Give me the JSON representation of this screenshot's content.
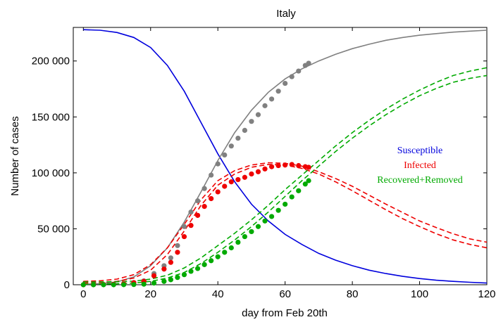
{
  "chart_data": {
    "type": "line",
    "title": "Italy",
    "xlabel": "day from Feb 20th",
    "ylabel": "Number of cases",
    "xlim": [
      -3,
      120
    ],
    "ylim": [
      0,
      230000
    ],
    "x_ticks": [
      0,
      20,
      40,
      60,
      80,
      100,
      120
    ],
    "x_tick_labels": [
      "0",
      "20",
      "40",
      "60",
      "80",
      "100",
      "120"
    ],
    "y_ticks": [
      0,
      50000,
      100000,
      150000,
      200000
    ],
    "y_tick_labels": [
      "0",
      "50 000",
      "100 000",
      "150 000",
      "200 000"
    ],
    "colors": {
      "susceptible": "#0000dd",
      "infected": "#ee0000",
      "recovered": "#00aa00",
      "total": "#808080"
    },
    "legend": {
      "placement": "right",
      "entries": [
        {
          "label": "Susceptible",
          "color": "#0000dd"
        },
        {
          "label": "Infected",
          "color": "#ee0000"
        },
        {
          "label": "Recovered+Removed",
          "color": "#00aa00"
        }
      ]
    },
    "series": [
      {
        "key": "susceptible",
        "style": "solid",
        "color": "#0000dd",
        "x": [
          0,
          5,
          10,
          15,
          20,
          25,
          30,
          35,
          40,
          45,
          50,
          55,
          60,
          65,
          70,
          75,
          80,
          85,
          90,
          95,
          100,
          105,
          110,
          115,
          120
        ],
        "y": [
          228000,
          227500,
          225500,
          221000,
          212000,
          196000,
          173000,
          145000,
          117000,
          92000,
          72000,
          57000,
          45000,
          36000,
          28000,
          22000,
          17000,
          13000,
          10000,
          7500,
          5500,
          4000,
          3000,
          2200,
          1500
        ]
      },
      {
        "key": "total_fit",
        "style": "solid",
        "color": "#808080",
        "x": [
          0,
          5,
          10,
          15,
          20,
          25,
          30,
          35,
          40,
          45,
          50,
          55,
          60,
          65,
          70,
          75,
          80,
          85,
          90,
          95,
          100,
          105,
          110,
          115,
          120
        ],
        "y": [
          500,
          1000,
          2500,
          7000,
          17000,
          33000,
          56000,
          83000,
          111000,
          136000,
          156000,
          172000,
          184000,
          193000,
          200000,
          206000,
          211000,
          215000,
          218500,
          221000,
          223000,
          224500,
          225800,
          226700,
          227500
        ]
      },
      {
        "key": "infected_fit_upper",
        "style": "dashed",
        "color": "#ee0000",
        "x": [
          0,
          5,
          10,
          15,
          20,
          25,
          30,
          35,
          40,
          45,
          50,
          55,
          60,
          65,
          70,
          75,
          80,
          85,
          90,
          95,
          100,
          105,
          110,
          115,
          120
        ],
        "y": [
          3000,
          3500,
          5000,
          9000,
          18000,
          33000,
          54000,
          76000,
          93000,
          102000,
          107000,
          109000,
          108500,
          106000,
          101000,
          95000,
          88000,
          80000,
          72000,
          64500,
          57000,
          51000,
          45500,
          41000,
          38000
        ]
      },
      {
        "key": "infected_fit_lower",
        "style": "dashed",
        "color": "#ee0000",
        "x": [
          0,
          5,
          10,
          15,
          20,
          25,
          30,
          35,
          40,
          45,
          50,
          55,
          60,
          65,
          70,
          75,
          80,
          85,
          90,
          95,
          100,
          105,
          110,
          115,
          120
        ],
        "y": [
          1500,
          2000,
          3000,
          6000,
          13000,
          27000,
          48000,
          71000,
          89000,
          99000,
          105000,
          107500,
          107000,
          104000,
          99000,
          92000,
          84000,
          75500,
          67000,
          59000,
          52000,
          45500,
          40000,
          36000,
          33000
        ]
      },
      {
        "key": "recovered_fit_upper",
        "style": "dashed",
        "color": "#00aa00",
        "x": [
          0,
          5,
          10,
          15,
          20,
          25,
          30,
          35,
          40,
          45,
          50,
          55,
          60,
          65,
          70,
          75,
          80,
          85,
          90,
          95,
          100,
          105,
          110,
          115,
          120
        ],
        "y": [
          2500,
          2500,
          2700,
          3200,
          5000,
          8500,
          15000,
          24000,
          35000,
          46000,
          58000,
          71000,
          85000,
          98000,
          111000,
          124000,
          136000,
          147000,
          157000,
          166000,
          174000,
          181000,
          187000,
          191000,
          194000
        ]
      },
      {
        "key": "recovered_fit_lower",
        "style": "dashed",
        "color": "#00aa00",
        "x": [
          0,
          5,
          10,
          15,
          20,
          25,
          30,
          35,
          40,
          45,
          50,
          55,
          60,
          65,
          70,
          75,
          80,
          85,
          90,
          95,
          100,
          105,
          110,
          115,
          120
        ],
        "y": [
          500,
          600,
          900,
          1500,
          3000,
          6000,
          11000,
          19000,
          29000,
          40000,
          52000,
          65000,
          79000,
          93000,
          106000,
          119000,
          131000,
          142000,
          152000,
          161000,
          169000,
          175500,
          181000,
          184500,
          187000
        ]
      }
    ],
    "data_points": [
      {
        "key": "total_data",
        "color": "#808080",
        "x": [
          0,
          3,
          6,
          9,
          12,
          15,
          18,
          21,
          24,
          26,
          28,
          30,
          32,
          34,
          36,
          38,
          40,
          42,
          44,
          46,
          48,
          50,
          52,
          54,
          56,
          58,
          60,
          62,
          64,
          66,
          67
        ],
        "y": [
          0,
          100,
          200,
          400,
          900,
          2000,
          3500,
          10000,
          17000,
          24000,
          35000,
          52000,
          65000,
          75000,
          86000,
          98000,
          108000,
          116000,
          124000,
          131000,
          138000,
          146000,
          152000,
          160000,
          166000,
          173000,
          180000,
          186000,
          191000,
          196000,
          198000
        ]
      },
      {
        "key": "infected_data",
        "color": "#ee0000",
        "x": [
          0,
          3,
          6,
          9,
          12,
          15,
          18,
          21,
          24,
          26,
          28,
          30,
          32,
          34,
          36,
          38,
          40,
          42,
          44,
          46,
          48,
          50,
          52,
          54,
          56,
          58,
          60,
          62,
          64,
          66,
          67
        ],
        "y": [
          0,
          100,
          200,
          400,
          800,
          1800,
          3000,
          8000,
          14000,
          20000,
          29000,
          43000,
          53000,
          62000,
          70000,
          77000,
          83000,
          88000,
          92000,
          94000,
          96000,
          99000,
          101000,
          103500,
          105500,
          106500,
          107000,
          107500,
          106500,
          105500,
          105000
        ]
      },
      {
        "key": "recovered_data",
        "color": "#00aa00",
        "x": [
          0,
          3,
          6,
          9,
          12,
          15,
          18,
          21,
          24,
          26,
          28,
          30,
          32,
          34,
          36,
          38,
          40,
          42,
          44,
          46,
          48,
          50,
          52,
          54,
          56,
          58,
          60,
          62,
          64,
          66,
          67
        ],
        "y": [
          0,
          0,
          0,
          0,
          100,
          200,
          500,
          1500,
          3000,
          4500,
          6500,
          9000,
          12000,
          14500,
          18000,
          21500,
          25000,
          29000,
          33000,
          38000,
          43000,
          47500,
          52000,
          57000,
          61000,
          66500,
          72000,
          78500,
          84000,
          90000,
          93000
        ]
      }
    ]
  }
}
